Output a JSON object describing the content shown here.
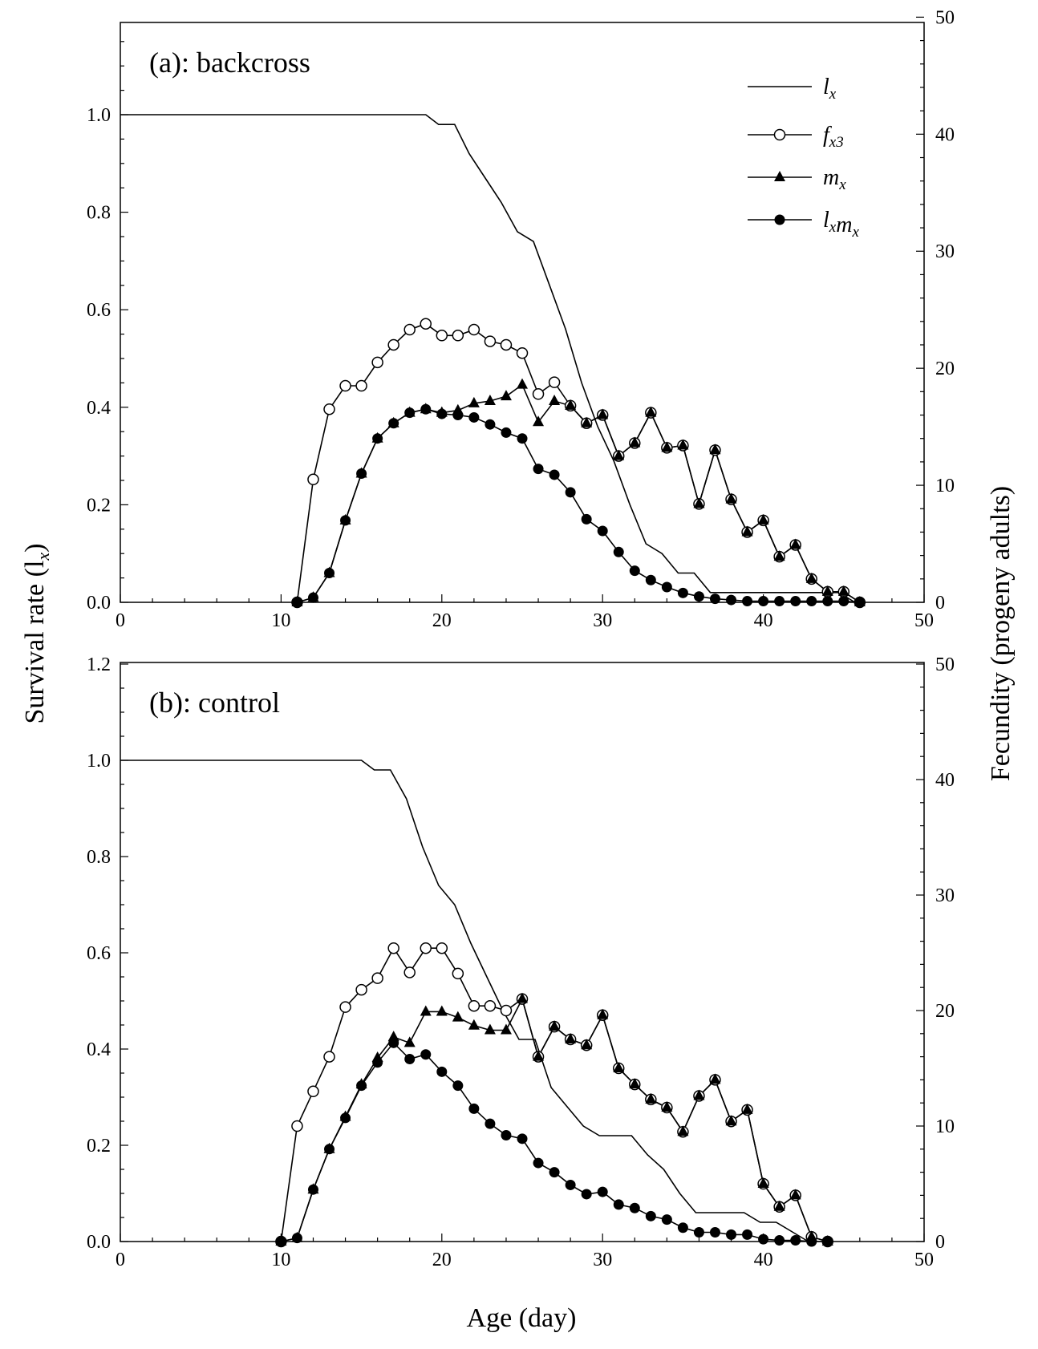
{
  "chart_data": {
    "type": "line",
    "xlabel": "Age (day)",
    "ylabel_left": "Survival rate (l",
    "ylabel_left_sub": "x",
    "ylabel_left_close": ")",
    "ylabel_right": "Fecundity (progeny adults)",
    "xlim": [
      0,
      50
    ],
    "x_ticks": [
      "0",
      "10",
      "20",
      "30",
      "40",
      "50"
    ],
    "legend": [
      {
        "key": "lx",
        "main": "l",
        "sub": "x",
        "main2": "",
        "sub2": "",
        "marker": "none"
      },
      {
        "key": "fx3",
        "main": "f",
        "sub": "x3",
        "main2": "",
        "sub2": "",
        "marker": "open-circle"
      },
      {
        "key": "mx",
        "main": "m",
        "sub": "x",
        "main2": "",
        "sub2": "",
        "marker": "filled-triangle"
      },
      {
        "key": "lxmx",
        "main": "l",
        "sub": "x",
        "main2": "m",
        "sub2": "x",
        "marker": "filled-circle"
      }
    ],
    "panels": [
      {
        "label": "(a): backcross",
        "ylim_left": [
          0,
          1.2
        ],
        "ylim_right": [
          0,
          50
        ],
        "y_ticks_left": [
          "0.0",
          "0.2",
          "0.4",
          "0.6",
          "0.8",
          "1.0"
        ],
        "y_ticks_right": [
          "0",
          "10",
          "20",
          "30",
          "40",
          "50"
        ],
        "series": {
          "lx": {
            "x": [
              0,
              19,
              19.8,
              20.8,
              21.7,
              22.7,
              23.7,
              24.7,
              25.7,
              26.7,
              27.7,
              28.7,
              29.7,
              30.7,
              31.7,
              32.7,
              33.7,
              34.7,
              35.7,
              36.7,
              37.7,
              38.7,
              39.7,
              40.7,
              41.7,
              42.7,
              43.7,
              44.7,
              45.7
            ],
            "y": [
              1.0,
              1.0,
              0.98,
              0.98,
              0.92,
              0.87,
              0.82,
              0.76,
              0.74,
              0.65,
              0.56,
              0.45,
              0.36,
              0.29,
              0.2,
              0.12,
              0.1,
              0.06,
              0.06,
              0.02,
              0.02,
              0.02,
              0.02,
              0.02,
              0.02,
              0.02,
              0.02,
              0.02,
              0.0
            ]
          },
          "fx3": {
            "x": [
              11,
              12,
              13,
              14,
              15,
              16,
              17,
              18,
              19,
              20,
              21,
              22,
              23,
              24,
              25,
              26,
              27,
              28,
              29,
              30,
              31,
              32,
              33,
              34,
              35,
              36,
              37,
              38,
              39,
              40,
              41,
              42,
              43,
              44,
              45,
              46
            ],
            "y": [
              0,
              10.5,
              16.5,
              18.5,
              18.5,
              20.5,
              22,
              23.3,
              23.8,
              22.8,
              22.8,
              23.3,
              22.3,
              22,
              21.3,
              17.8,
              18.8,
              16.8,
              15.3,
              16,
              12.5,
              13.6,
              16.2,
              13.2,
              13.4,
              8.4,
              13,
              8.8,
              6,
              7,
              3.9,
              4.9,
              2,
              0.9,
              0.9,
              0
            ]
          },
          "mx": {
            "x": [
              11,
              12,
              13,
              14,
              15,
              16,
              17,
              18,
              19,
              20,
              21,
              22,
              23,
              24,
              25,
              26,
              27,
              28,
              29,
              30,
              31,
              32,
              33,
              34,
              35,
              36,
              37,
              38,
              39,
              40,
              41,
              42,
              43,
              44,
              45,
              46
            ],
            "y": [
              0,
              0.4,
              2.5,
              7,
              11,
              14,
              15.3,
              16.2,
              16.5,
              16.2,
              16.4,
              17,
              17.2,
              17.6,
              18.6,
              15.4,
              17.2,
              16.8,
              15.3,
              16,
              12.5,
              13.6,
              16.2,
              13.2,
              13.4,
              8.4,
              13,
              8.8,
              6,
              7,
              3.9,
              4.9,
              2,
              0.9,
              0.9,
              0
            ]
          },
          "lxmx": {
            "x": [
              11,
              12,
              13,
              14,
              15,
              16,
              17,
              18,
              19,
              20,
              21,
              22,
              23,
              24,
              25,
              26,
              27,
              28,
              29,
              30,
              31,
              32,
              33,
              34,
              35,
              36,
              37,
              38,
              39,
              40,
              41,
              42,
              43,
              44,
              45,
              46
            ],
            "y": [
              0,
              0.4,
              2.5,
              7,
              11,
              14,
              15.3,
              16.2,
              16.5,
              16.1,
              16,
              15.8,
              15.2,
              14.5,
              14,
              11.4,
              10.9,
              9.4,
              7.1,
              6.1,
              4.3,
              2.7,
              1.9,
              1.3,
              0.8,
              0.5,
              0.3,
              0.2,
              0.1,
              0.1,
              0.1,
              0.1,
              0.1,
              0.1,
              0.1,
              0
            ]
          }
        }
      },
      {
        "label": "(b): control",
        "ylim_left": [
          0,
          1.2
        ],
        "ylim_right": [
          0,
          50
        ],
        "y_ticks_left": [
          "0.0",
          "0.2",
          "0.4",
          "0.6",
          "0.8",
          "1.0",
          "1.2"
        ],
        "y_ticks_right": [
          "0",
          "10",
          "20",
          "30",
          "40",
          "50"
        ],
        "series": {
          "lx": {
            "x": [
              0,
              15,
              15.8,
              16.8,
              17.8,
              18.8,
              19.8,
              20.8,
              21.8,
              22.8,
              23.8,
              24.8,
              25.8,
              26.8,
              27.8,
              28.8,
              29.8,
              30.8,
              31.8,
              32.8,
              33.8,
              34.8,
              35.8,
              36.8,
              37.8,
              38.8,
              39.8,
              40.8,
              41.8,
              42.8
            ],
            "y": [
              1.0,
              1.0,
              0.98,
              0.98,
              0.92,
              0.82,
              0.74,
              0.7,
              0.62,
              0.55,
              0.48,
              0.42,
              0.42,
              0.32,
              0.28,
              0.24,
              0.22,
              0.22,
              0.22,
              0.18,
              0.15,
              0.1,
              0.06,
              0.06,
              0.06,
              0.06,
              0.04,
              0.04,
              0.02,
              0.0
            ]
          },
          "fx3": {
            "x": [
              10,
              11,
              12,
              13,
              14,
              15,
              16,
              17,
              18,
              19,
              20,
              21,
              22,
              23,
              24,
              25,
              26,
              27,
              28,
              29,
              30,
              31,
              32,
              33,
              34,
              35,
              36,
              37,
              38,
              39,
              40,
              41,
              42,
              43,
              44
            ],
            "y": [
              0,
              10,
              13,
              16,
              20.3,
              21.8,
              22.8,
              25.4,
              23.3,
              25.4,
              25.4,
              23.2,
              20.4,
              20.4,
              20,
              21,
              16,
              18.6,
              17.5,
              17,
              19.6,
              15,
              13.6,
              12.3,
              11.6,
              9.5,
              12.6,
              14,
              10.4,
              11.4,
              5,
              3,
              4,
              0.4,
              0
            ]
          },
          "mx": {
            "x": [
              10,
              11,
              12,
              13,
              14,
              15,
              16,
              17,
              18,
              19,
              20,
              21,
              22,
              23,
              24,
              25,
              26,
              27,
              28,
              29,
              30,
              31,
              32,
              33,
              34,
              35,
              36,
              37,
              38,
              39,
              40,
              41,
              42,
              43,
              44
            ],
            "y": [
              0,
              0.3,
              4.5,
              8,
              10.8,
              13.6,
              15.9,
              17.7,
              17.2,
              19.9,
              19.9,
              19.4,
              18.7,
              18.3,
              18.3,
              21,
              16,
              18.6,
              17.5,
              17,
              19.6,
              15,
              13.6,
              12.3,
              11.6,
              9.5,
              12.6,
              14,
              10.4,
              11.4,
              5,
              3,
              4,
              0.4,
              0
            ]
          },
          "lxmx": {
            "x": [
              10,
              11,
              12,
              13,
              14,
              15,
              16,
              17,
              18,
              19,
              20,
              21,
              22,
              23,
              24,
              25,
              26,
              27,
              28,
              29,
              30,
              31,
              32,
              33,
              34,
              35,
              36,
              37,
              38,
              39,
              40,
              41,
              42,
              43,
              44
            ],
            "y": [
              0,
              0.3,
              4.5,
              8,
              10.7,
              13.5,
              15.5,
              17.2,
              15.8,
              16.2,
              14.7,
              13.5,
              11.5,
              10.2,
              9.2,
              8.9,
              6.8,
              6,
              4.9,
              4.1,
              4.3,
              3.2,
              2.9,
              2.2,
              1.9,
              1.2,
              0.8,
              0.8,
              0.6,
              0.6,
              0.2,
              0.1,
              0.1,
              0,
              0
            ]
          }
        }
      }
    ]
  }
}
